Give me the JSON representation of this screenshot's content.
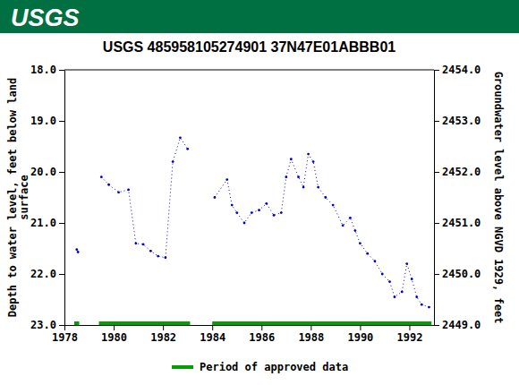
{
  "header": {
    "logo": "USGS"
  },
  "chart_data": {
    "type": "line",
    "title": "USGS 485958105274901 37N47E01ABBB01",
    "ylabel": [
      "Depth to water level, feet below land",
      "surface"
    ],
    "y2label": "Groundwater level above NGVD 1929, feet",
    "xlim": [
      1978,
      1993
    ],
    "xticks": [
      1978,
      1980,
      1982,
      1984,
      1986,
      1988,
      1990,
      1992
    ],
    "ylim": [
      23.0,
      18.0
    ],
    "yticks": [
      {
        "value": 18,
        "label": "18.0"
      },
      {
        "value": 19,
        "label": "19.0"
      },
      {
        "value": 20,
        "label": "20.0"
      },
      {
        "value": 21,
        "label": "21.0"
      },
      {
        "value": 22,
        "label": "22.0"
      },
      {
        "value": 23,
        "label": "23.0"
      }
    ],
    "y2lim": [
      2449,
      2454
    ],
    "y2ticks": [
      {
        "value": 2454,
        "label": "2454.0"
      },
      {
        "value": 2453,
        "label": "2453.0"
      },
      {
        "value": 2452,
        "label": "2452.0"
      },
      {
        "value": 2451,
        "label": "2451.0"
      },
      {
        "value": 2450,
        "label": "2450.0"
      },
      {
        "value": 2449,
        "label": "2449.0"
      }
    ],
    "grid": false,
    "legend": "bottom",
    "series": [
      {
        "name": "Depth to water level",
        "color": "#0000cc",
        "marker": "dot",
        "line_style": "dotted",
        "x": [
          1978.5,
          1978.55,
          1979.0,
          1979.5,
          1979.8,
          1980.2,
          1980.6,
          1980.9,
          1981.2,
          1981.5,
          1981.8,
          1982.1,
          1982.4,
          1982.7,
          1983.0,
          1983.5,
          1984.1,
          1984.6,
          1984.8,
          1985.0,
          1985.3,
          1985.6,
          1985.9,
          1986.2,
          1986.5,
          1986.8,
          1987.0,
          1987.2,
          1987.5,
          1987.7,
          1987.9,
          1988.1,
          1988.3,
          1988.6,
          1988.9,
          1989.3,
          1989.6,
          1989.8,
          1990.0,
          1990.3,
          1990.6,
          1990.9,
          1991.2,
          1991.4,
          1991.7,
          1991.9,
          1992.1,
          1992.3,
          1992.5,
          1992.8
        ],
        "values": [
          21.52,
          21.57,
          null,
          20.1,
          20.25,
          20.4,
          20.35,
          21.4,
          21.42,
          21.55,
          21.65,
          21.68,
          19.8,
          19.33,
          19.55,
          null,
          20.5,
          20.15,
          20.65,
          20.8,
          21.0,
          20.8,
          20.75,
          20.62,
          20.85,
          20.8,
          20.1,
          19.75,
          20.1,
          20.3,
          19.65,
          19.8,
          20.3,
          20.5,
          20.65,
          21.05,
          20.9,
          21.15,
          21.4,
          21.6,
          21.75,
          22.0,
          22.15,
          22.45,
          22.35,
          21.8,
          22.1,
          22.45,
          22.6,
          22.65
        ]
      }
    ],
    "periods": {
      "name": "Period of approved data",
      "color": "#00a000",
      "ranges": [
        [
          1978.4,
          1978.6
        ],
        [
          1979.4,
          1983.1
        ],
        [
          1984.0,
          1992.9
        ]
      ]
    }
  }
}
